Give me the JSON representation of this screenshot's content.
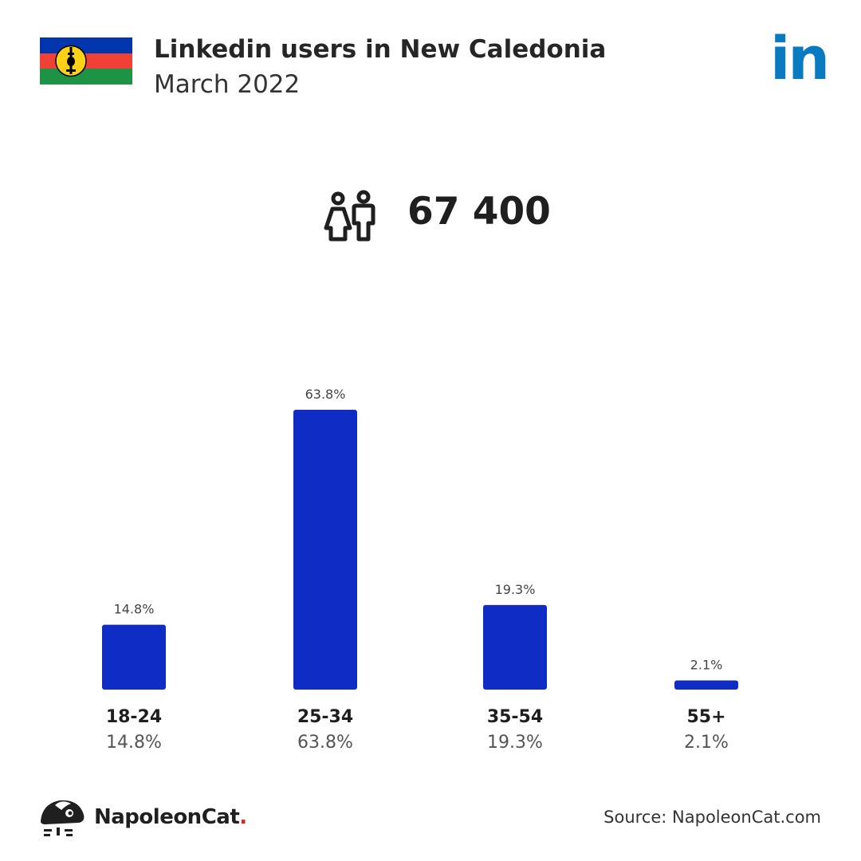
{
  "header": {
    "title": "Linkedin users in New Caledonia",
    "subtitle": "March 2022",
    "logo_text": "in"
  },
  "total_users": "67 400",
  "colors": {
    "bar": "#0f2dc4",
    "linkedin": "#0a7ac0",
    "flag_blue": "#0035ad",
    "flag_red": "#ef4135",
    "flag_green": "#1e9245",
    "flag_yellow": "#fcd116"
  },
  "icons": {
    "flag": "new-caledonia-flag-icon",
    "users": "users-icon",
    "linkedin": "linkedin-logo-icon",
    "napoleoncat": "napoleoncat-logo-icon"
  },
  "chart_data": {
    "type": "bar",
    "categories": [
      "18-24",
      "25-34",
      "35-54",
      "55+"
    ],
    "values": [
      14.8,
      63.8,
      19.3,
      2.1
    ],
    "value_labels": [
      "14.8%",
      "63.8%",
      "19.3%",
      "2.1%"
    ],
    "xlabel": "",
    "ylabel": "",
    "ylim": [
      0,
      63.8
    ],
    "grid": false
  },
  "footer": {
    "brand": "NapoleonCat",
    "brand_dot": ".",
    "source": "Source: NapoleonCat.com"
  }
}
